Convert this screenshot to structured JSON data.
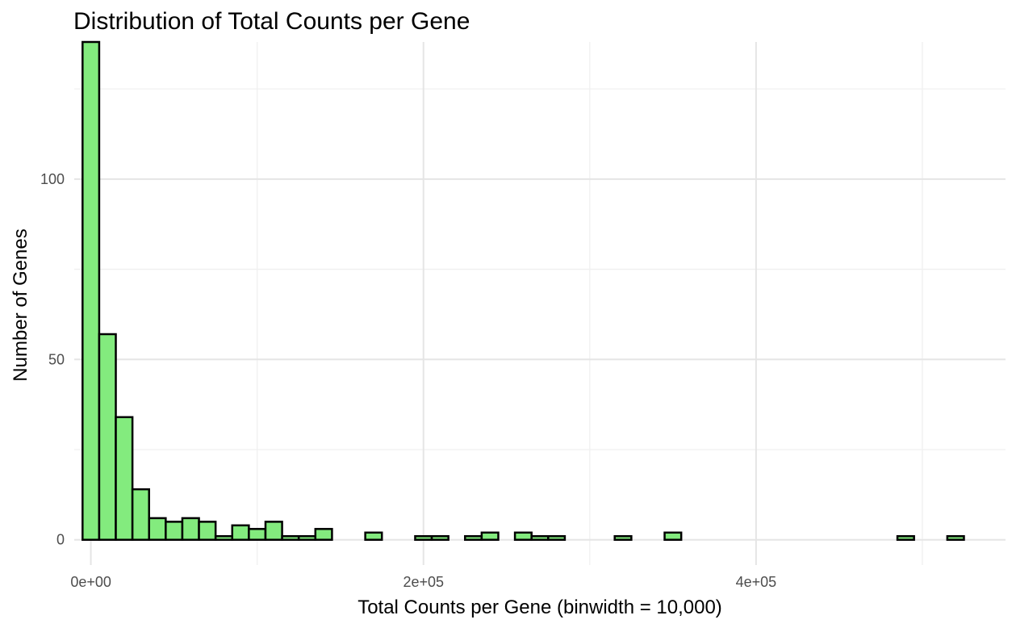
{
  "chart_data": {
    "type": "bar",
    "title": "Distribution of Total Counts per Gene",
    "xlabel": "Total Counts per Gene (binwidth = 10,000)",
    "ylabel": "Number of Genes",
    "binwidth": 10000,
    "xlim": [
      -10000,
      550000
    ],
    "ylim": [
      -7,
      138
    ],
    "x_ticks": [
      0,
      200000,
      400000
    ],
    "x_tick_labels": [
      "0e+00",
      "2e+05",
      "4e+05"
    ],
    "y_ticks": [
      0,
      50,
      100
    ],
    "y_tick_labels": [
      "0",
      "50",
      "100"
    ],
    "grid": true,
    "bar_fill": "#83EB7E",
    "bar_edge": "#000000",
    "bin_centers": [
      0,
      10000,
      20000,
      30000,
      40000,
      50000,
      60000,
      70000,
      80000,
      90000,
      100000,
      110000,
      120000,
      130000,
      140000,
      150000,
      160000,
      170000,
      180000,
      190000,
      200000,
      210000,
      220000,
      230000,
      240000,
      250000,
      260000,
      270000,
      280000,
      290000,
      300000,
      310000,
      320000,
      330000,
      340000,
      350000,
      360000,
      370000,
      380000,
      390000,
      400000,
      410000,
      420000,
      430000,
      440000,
      450000,
      460000,
      470000,
      480000,
      490000,
      500000,
      510000,
      520000
    ],
    "counts": [
      138,
      57,
      34,
      14,
      6,
      5,
      6,
      5,
      1,
      4,
      3,
      5,
      1,
      1,
      3,
      0,
      0,
      2,
      0,
      0,
      1,
      1,
      0,
      1,
      2,
      0,
      2,
      1,
      1,
      0,
      0,
      0,
      1,
      0,
      0,
      2,
      0,
      0,
      0,
      0,
      0,
      0,
      0,
      0,
      0,
      0,
      0,
      0,
      0,
      1,
      0,
      0,
      1
    ]
  }
}
